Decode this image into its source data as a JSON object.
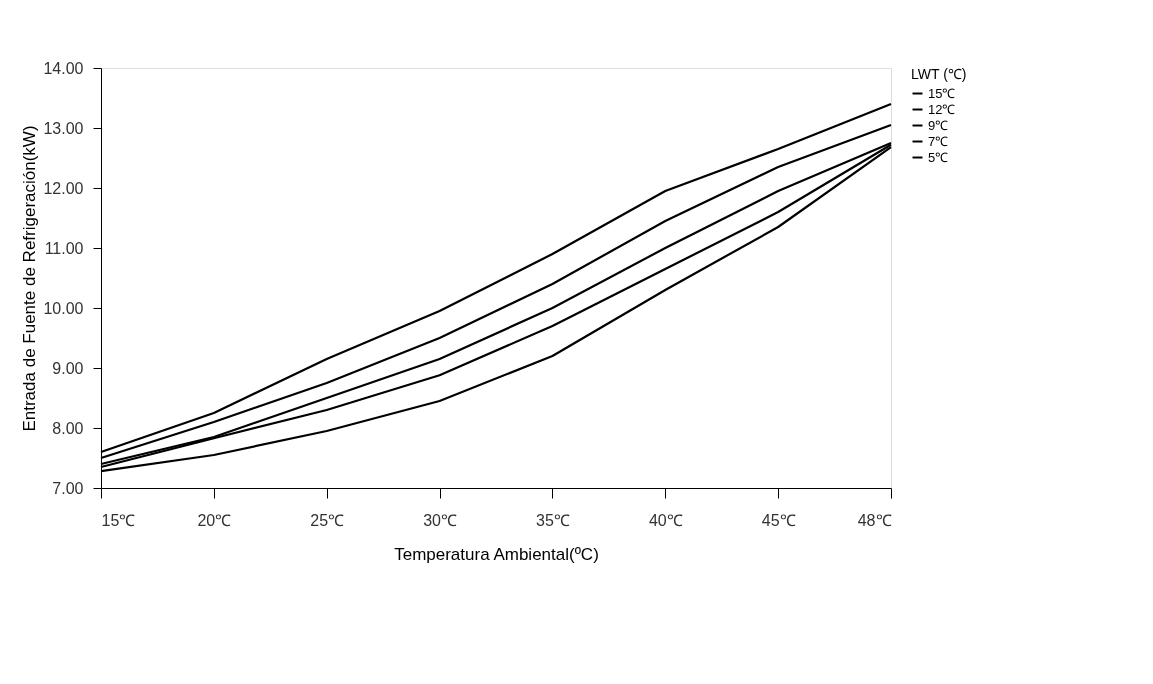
{
  "chart_data": {
    "type": "line",
    "xlabel": "Temperatura Ambiental(ºC)",
    "ylabel": "Entrada de Fuente de Refrigeración(kW)",
    "legend_title": "LWT (℃)",
    "categories": [
      "15℃",
      "20℃",
      "25℃",
      "30℃",
      "35℃",
      "40℃",
      "45℃",
      "48℃"
    ],
    "ylim": [
      7,
      14
    ],
    "yticks": [
      {
        "value": 7,
        "label": "7.00"
      },
      {
        "value": 8,
        "label": "8.00"
      },
      {
        "value": 9,
        "label": "9.00"
      },
      {
        "value": 10,
        "label": "10.00"
      },
      {
        "value": 11,
        "label": "11.00"
      },
      {
        "value": 12,
        "label": "12.00"
      },
      {
        "value": 13,
        "label": "13.00"
      },
      {
        "value": 14,
        "label": "14.00"
      }
    ],
    "series": [
      {
        "name": "15℃",
        "color": "#000000",
        "values": [
          7.6,
          8.25,
          9.15,
          9.95,
          10.9,
          11.95,
          12.65,
          13.4
        ]
      },
      {
        "name": "12℃",
        "color": "#000000",
        "values": [
          7.5,
          8.1,
          8.75,
          9.5,
          10.4,
          11.45,
          12.35,
          13.05
        ]
      },
      {
        "name": "9℃",
        "color": "#000000",
        "values": [
          7.4,
          7.85,
          8.5,
          9.15,
          10.0,
          11.0,
          11.95,
          12.75
        ]
      },
      {
        "name": "7℃",
        "color": "#000000",
        "values": [
          7.35,
          7.83,
          8.3,
          8.88,
          9.7,
          10.65,
          11.6,
          12.72
        ]
      },
      {
        "name": "5℃",
        "color": "#000000",
        "values": [
          7.28,
          7.55,
          7.95,
          8.45,
          9.2,
          10.3,
          11.35,
          12.68
        ]
      }
    ],
    "grid": false,
    "legend": "right",
    "marker": "none",
    "line_style": "solid"
  }
}
